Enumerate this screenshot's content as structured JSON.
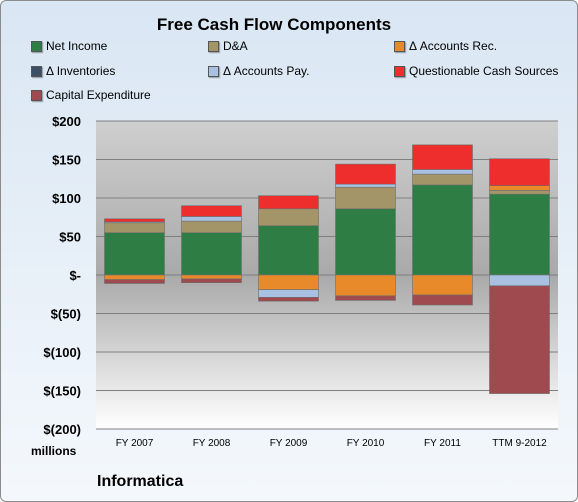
{
  "chart_data": {
    "type": "bar",
    "stacked": true,
    "title": "Free Cash Flow Components",
    "ylabel": "",
    "xlabel": "",
    "units_label": "millions",
    "footer": "Informatica",
    "ylim": [
      -200,
      200
    ],
    "yticks": [
      {
        "value": 200,
        "label": "$200"
      },
      {
        "value": 150,
        "label": "$150"
      },
      {
        "value": 100,
        "label": "$100"
      },
      {
        "value": 50,
        "label": "$50"
      },
      {
        "value": 0,
        "label": "$-"
      },
      {
        "value": -50,
        "label": "$(50)"
      },
      {
        "value": -100,
        "label": "$(100)"
      },
      {
        "value": -150,
        "label": "$(150)"
      },
      {
        "value": -200,
        "label": "$(200)"
      }
    ],
    "categories": [
      "FY 2007",
      "FY 2008",
      "FY 2009",
      "FY 2010",
      "FY 2011",
      "TTM 9-2012"
    ],
    "legend_position": "top",
    "series": [
      {
        "name": "Net Income",
        "color": "#2e7d45",
        "values": [
          55,
          55,
          64,
          86,
          117,
          105
        ]
      },
      {
        "name": "D&A",
        "color": "#a49568",
        "values": [
          13,
          15,
          22,
          28,
          14,
          5
        ]
      },
      {
        "name": "Δ Accounts Rec.",
        "color": "#e8892a",
        "values": [
          -6,
          -5,
          -19,
          -27,
          -26,
          6
        ]
      },
      {
        "name": "Δ Inventories",
        "color": "#3a4f66",
        "values": [
          0,
          0,
          0,
          0,
          0,
          0
        ]
      },
      {
        "name": "Δ Accounts Pay.",
        "color": "#a8c1e3",
        "values": [
          1,
          6,
          -10,
          4,
          6,
          -14
        ]
      },
      {
        "name": "Questionable Cash Sources",
        "color": "#ee2d2d",
        "values": [
          4,
          14,
          17,
          26,
          32,
          35
        ]
      },
      {
        "name": "Capital Expenditure",
        "color": "#9e4a4e",
        "values": [
          -5,
          -5,
          -5,
          -6,
          -13,
          -140
        ]
      }
    ]
  }
}
